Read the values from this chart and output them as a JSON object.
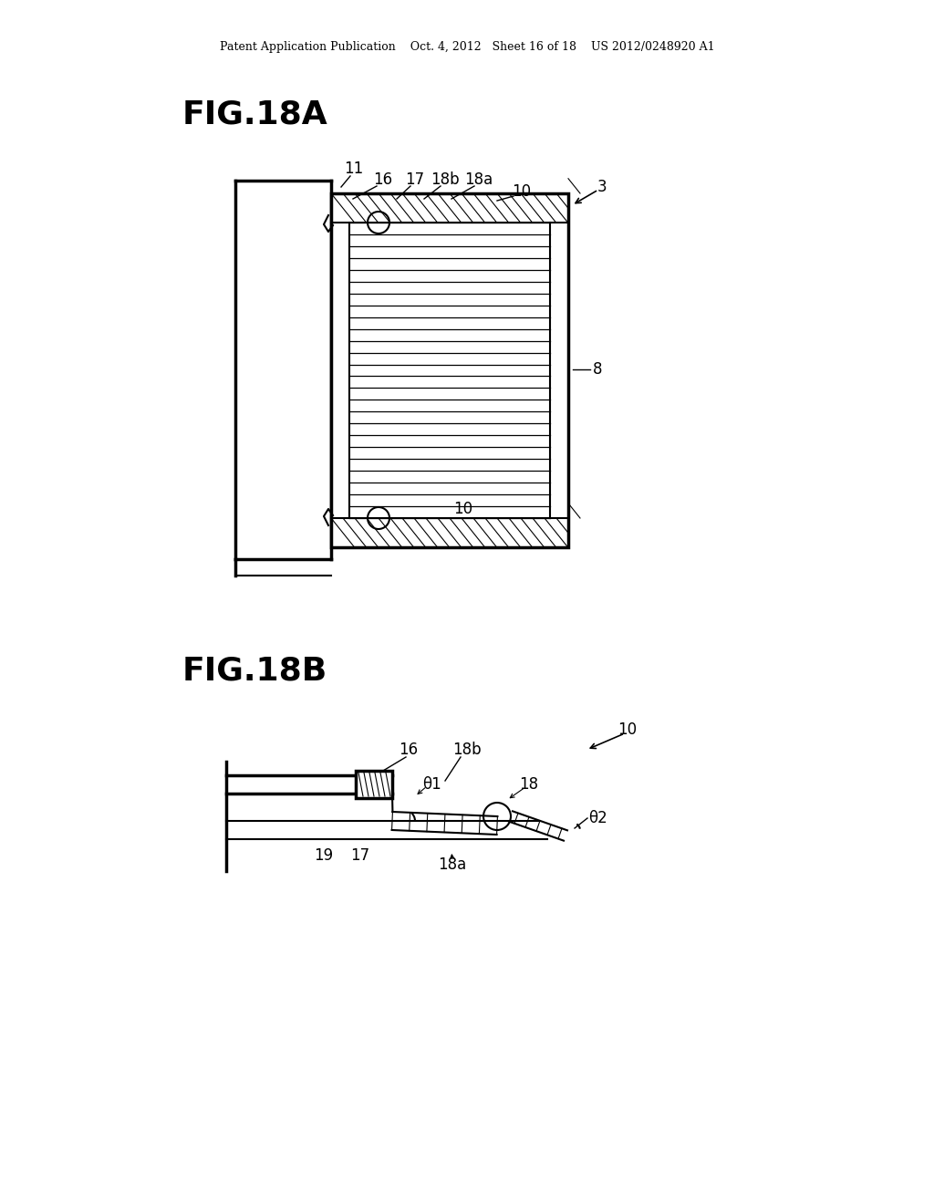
{
  "bg_color": "#ffffff",
  "line_color": "#000000",
  "header_text": "Patent Application Publication    Oct. 4, 2012   Sheet 16 of 18    US 2012/0248920 A1",
  "fig18a_label": "FIG.18A",
  "fig18b_label": "FIG.18B"
}
